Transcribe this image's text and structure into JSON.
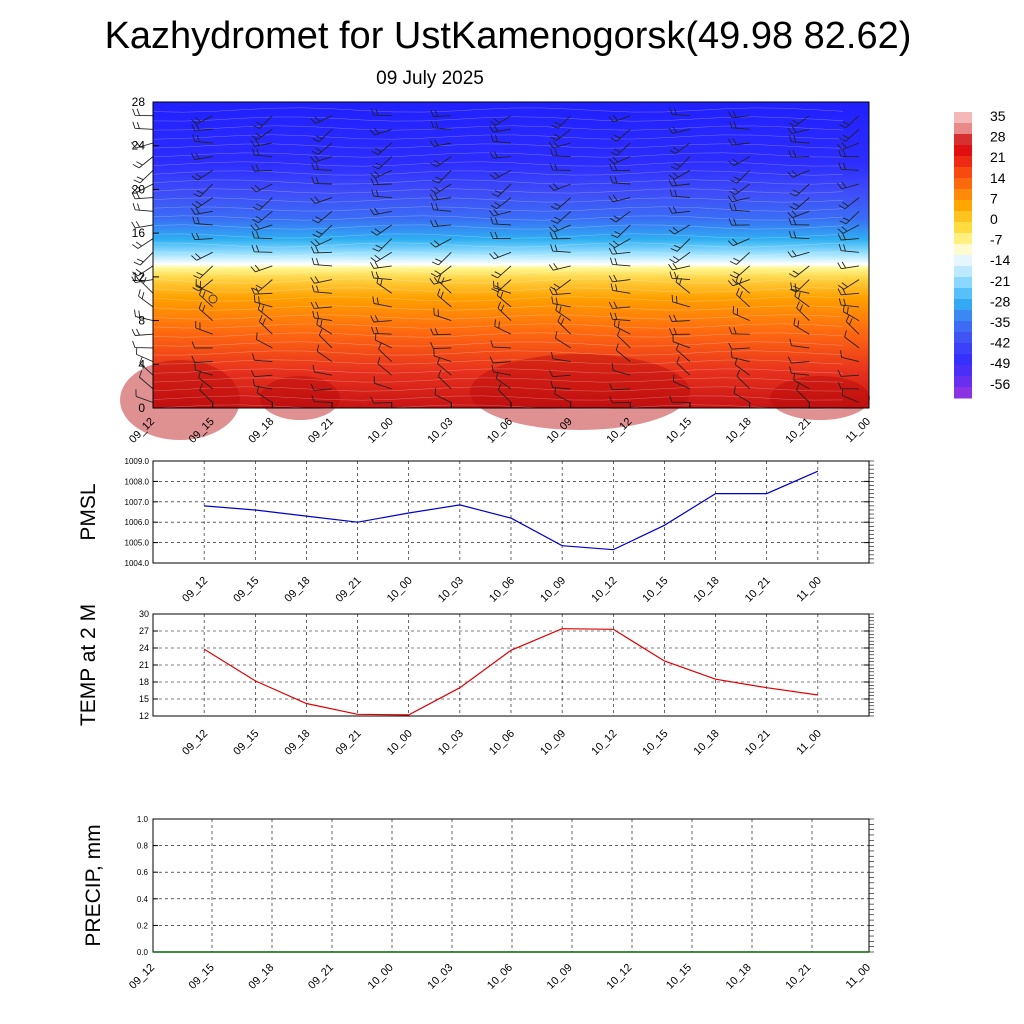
{
  "title": "Kazhydromet for UstKamenogorsk(49.98 82.62)",
  "date": "09 July 2025",
  "chart_data": [
    {
      "type": "heatmap",
      "name": "height-time temperature cross-section with wind barbs",
      "x_ticks": [
        "09_12",
        "09_15",
        "09_18",
        "09_21",
        "10_00",
        "10_03",
        "10_06",
        "10_09",
        "10_12",
        "10_15",
        "10_18",
        "10_21",
        "11_00"
      ],
      "y_ticks": [
        "0",
        "4",
        "8",
        "12",
        "16",
        "20",
        "24",
        "28"
      ],
      "ylim": [
        0,
        28
      ],
      "colorbar_labels": [
        "35",
        "28",
        "21",
        "14",
        "7",
        "0",
        "-7",
        "-14",
        "-21",
        "-28",
        "-35",
        "-42",
        "-49",
        "-56"
      ],
      "colorbar_range": [
        -63,
        42
      ],
      "colors": {
        "warm": "#d7191c",
        "orange": "#ff8c00",
        "yellow": "#fff060",
        "white": "#ffffff",
        "cyan": "#2ab0f0",
        "blue": "#1a2cff",
        "purple": "#8a2be2"
      }
    },
    {
      "type": "line",
      "ylabel": "PMSL",
      "categories": [
        "09_12",
        "09_15",
        "09_18",
        "09_21",
        "10_00",
        "10_03",
        "10_06",
        "10_09",
        "10_12",
        "10_15",
        "10_18",
        "10_21",
        "11_00"
      ],
      "values": [
        1006.8,
        1006.6,
        1006.3,
        1006.0,
        1006.45,
        1006.85,
        1006.2,
        1004.85,
        1004.65,
        1005.85,
        1007.4,
        1007.4,
        1008.5
      ],
      "ylim": [
        1004.0,
        1009.0
      ],
      "y_ticks": [
        "1004.0",
        "1005.0",
        "1006.0",
        "1007.0",
        "1008.0",
        "1009.0"
      ],
      "color": "#0000cc",
      "grid": true
    },
    {
      "type": "line",
      "ylabel": "TEMP at 2 M",
      "categories": [
        "09_12",
        "09_15",
        "09_18",
        "09_21",
        "10_00",
        "10_03",
        "10_06",
        "10_09",
        "10_12",
        "10_15",
        "10_18",
        "10_21",
        "11_00"
      ],
      "values": [
        23.8,
        18.2,
        14.2,
        12.3,
        12.2,
        17.0,
        23.6,
        27.4,
        27.3,
        21.7,
        18.5,
        17.0,
        15.7
      ],
      "ylim": [
        12,
        30
      ],
      "y_ticks": [
        "12",
        "15",
        "18",
        "21",
        "24",
        "27",
        "30"
      ],
      "color": "#e00000",
      "grid": true
    },
    {
      "type": "line",
      "ylabel": "PRECIP, mm",
      "categories": [
        "09_12",
        "09_15",
        "09_18",
        "09_21",
        "10_00",
        "10_03",
        "10_06",
        "10_09",
        "10_12",
        "10_15",
        "10_18",
        "10_21",
        "11_00"
      ],
      "values": [
        0,
        0,
        0,
        0,
        0,
        0,
        0,
        0,
        0,
        0,
        0,
        0,
        0
      ],
      "ylim": [
        0,
        1.0
      ],
      "y_ticks": [
        "0.0",
        "0.2",
        "0.4",
        "0.6",
        "0.8",
        "1.0"
      ],
      "color": "#006600",
      "grid": true
    }
  ]
}
